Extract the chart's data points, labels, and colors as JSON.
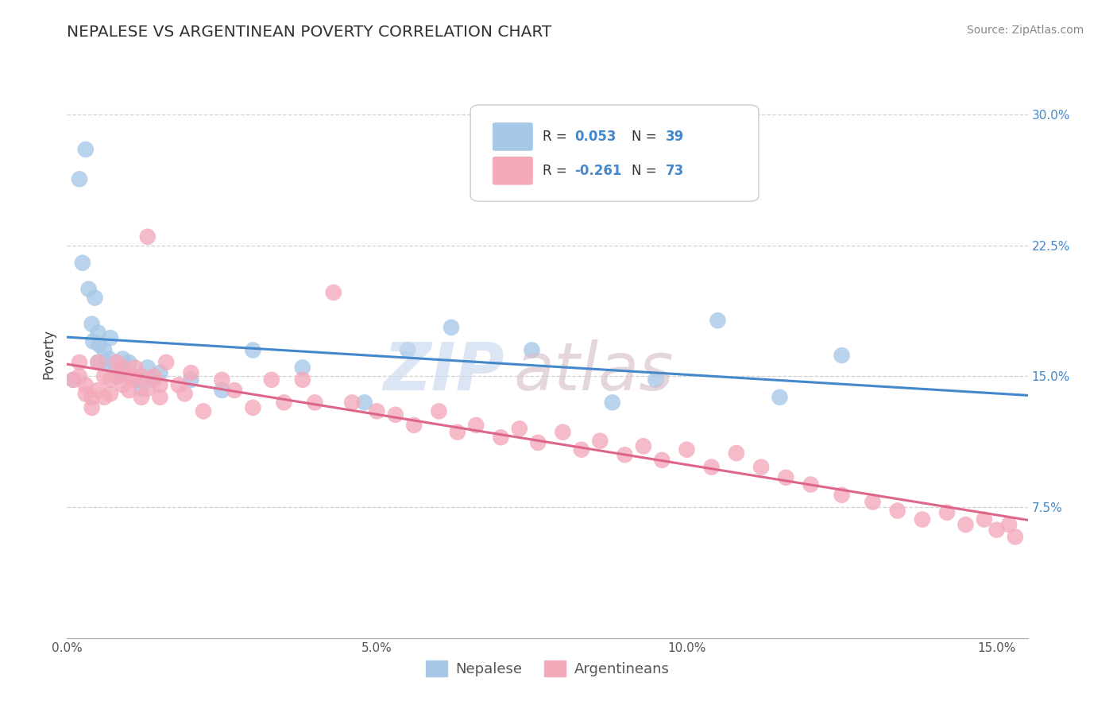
{
  "title": "NEPALESE VS ARGENTINEAN POVERTY CORRELATION CHART",
  "source_text": "Source: ZipAtlas.com",
  "ylabel": "Poverty",
  "xlim": [
    0.0,
    0.155
  ],
  "ylim": [
    0.0,
    0.325
  ],
  "x_ticks": [
    0.0,
    0.05,
    0.1,
    0.15
  ],
  "x_tick_labels": [
    "0.0%",
    "5.0%",
    "10.0%",
    "15.0%"
  ],
  "y_ticks": [
    0.075,
    0.15,
    0.225,
    0.3
  ],
  "y_tick_labels": [
    "7.5%",
    "15.0%",
    "22.5%",
    "30.0%"
  ],
  "nepalese_R": "0.053",
  "nepalese_N": "39",
  "argentinean_R": "-0.261",
  "argentinean_N": "73",
  "nepalese_color": "#a8c8e8",
  "argentinean_color": "#f4aabb",
  "nepalese_line_color": "#4488cc",
  "argentinean_line_color": "#dd6688",
  "background_color": "#ffffff",
  "grid_color": "#cccccc",
  "legend_nepalese_label": "Nepalese",
  "legend_argentinean_label": "Argentineans",
  "nepalese_x": [
    0.001,
    0.002,
    0.0025,
    0.003,
    0.0035,
    0.004,
    0.0042,
    0.0045,
    0.005,
    0.0052,
    0.005,
    0.006,
    0.0062,
    0.007,
    0.0068,
    0.008,
    0.0082,
    0.009,
    0.0088,
    0.01,
    0.011,
    0.0115,
    0.012,
    0.013,
    0.014,
    0.015,
    0.02,
    0.025,
    0.03,
    0.038,
    0.048,
    0.055,
    0.062,
    0.075,
    0.088,
    0.095,
    0.105,
    0.115,
    0.125
  ],
  "nepalese_y": [
    0.148,
    0.263,
    0.215,
    0.28,
    0.2,
    0.18,
    0.17,
    0.195,
    0.175,
    0.168,
    0.158,
    0.165,
    0.158,
    0.172,
    0.16,
    0.155,
    0.15,
    0.16,
    0.152,
    0.158,
    0.15,
    0.148,
    0.143,
    0.155,
    0.148,
    0.152,
    0.148,
    0.142,
    0.165,
    0.155,
    0.135,
    0.165,
    0.178,
    0.165,
    0.135,
    0.148,
    0.182,
    0.138,
    0.162
  ],
  "argentinean_x": [
    0.001,
    0.002,
    0.002,
    0.003,
    0.003,
    0.004,
    0.004,
    0.005,
    0.005,
    0.006,
    0.006,
    0.007,
    0.007,
    0.008,
    0.008,
    0.009,
    0.009,
    0.01,
    0.01,
    0.011,
    0.011,
    0.012,
    0.012,
    0.013,
    0.013,
    0.014,
    0.015,
    0.015,
    0.016,
    0.018,
    0.019,
    0.02,
    0.022,
    0.025,
    0.027,
    0.03,
    0.033,
    0.035,
    0.038,
    0.04,
    0.043,
    0.046,
    0.05,
    0.053,
    0.056,
    0.06,
    0.063,
    0.066,
    0.07,
    0.073,
    0.076,
    0.08,
    0.083,
    0.086,
    0.09,
    0.093,
    0.096,
    0.1,
    0.104,
    0.108,
    0.112,
    0.116,
    0.12,
    0.125,
    0.13,
    0.134,
    0.138,
    0.142,
    0.145,
    0.148,
    0.15,
    0.152,
    0.153
  ],
  "argentinean_y": [
    0.148,
    0.158,
    0.15,
    0.145,
    0.14,
    0.138,
    0.132,
    0.158,
    0.142,
    0.15,
    0.138,
    0.148,
    0.14,
    0.158,
    0.15,
    0.155,
    0.145,
    0.15,
    0.142,
    0.155,
    0.148,
    0.15,
    0.138,
    0.23,
    0.143,
    0.15,
    0.145,
    0.138,
    0.158,
    0.145,
    0.14,
    0.152,
    0.13,
    0.148,
    0.142,
    0.132,
    0.148,
    0.135,
    0.148,
    0.135,
    0.198,
    0.135,
    0.13,
    0.128,
    0.122,
    0.13,
    0.118,
    0.122,
    0.115,
    0.12,
    0.112,
    0.118,
    0.108,
    0.113,
    0.105,
    0.11,
    0.102,
    0.108,
    0.098,
    0.106,
    0.098,
    0.092,
    0.088,
    0.082,
    0.078,
    0.073,
    0.068,
    0.072,
    0.065,
    0.068,
    0.062,
    0.065,
    0.058
  ]
}
